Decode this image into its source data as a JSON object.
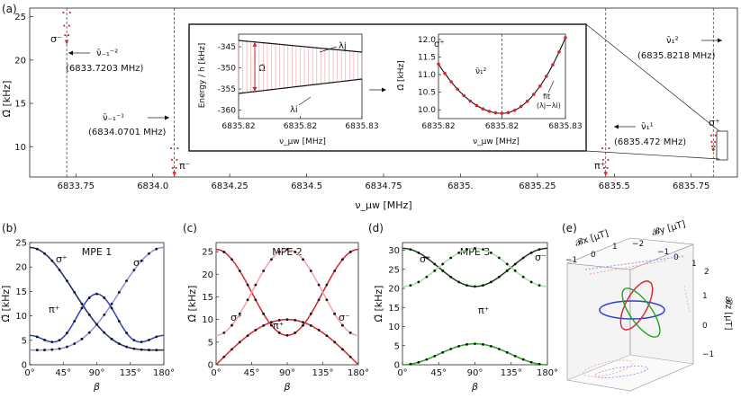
{
  "colors": {
    "red": "#d9232e",
    "navy": "#1b2a6b",
    "blue": "#2b3fd1",
    "lavender": "#8e8fe0",
    "pink": "#f3a1a5",
    "green": "#1fa51f",
    "lightgreen": "#9fe29f",
    "darkgreen": "#123d12"
  },
  "chart_data": [
    {
      "id": "a",
      "type": "scatter",
      "panel": "(a)",
      "xlabel": "ν_μw [MHz]",
      "ylabel": "Ω̃ [kHz]",
      "xlim": [
        6833.6,
        6835.9
      ],
      "ylim": [
        6.5,
        26
      ],
      "xticks": [
        "6833.75",
        "6834.0",
        "6834.25",
        "6834.5",
        "6834.75",
        "6835.",
        "6835.25",
        "6835.5",
        "6835.75"
      ],
      "yticks": [
        "10",
        "15",
        "20",
        "25"
      ],
      "clusters": [
        {
          "label": "σ⁻",
          "x0": 6833.7203,
          "ytop": 25.5,
          "ybottom": 22.0
        },
        {
          "label": "π⁻",
          "x0": 6834.0701,
          "ytop": 9.8,
          "ybottom": 6.8
        },
        {
          "label": "π⁺",
          "x0": 6835.472,
          "ytop": 9.8,
          "ybottom": 6.8
        },
        {
          "label": "σ⁺",
          "x0": 6835.8218,
          "ytop": 11.3,
          "ybottom": 9.6
        }
      ],
      "annotations": [
        {
          "sym": "ν̄₋₁⁻²",
          "freq": "(6833.7203 MHz)"
        },
        {
          "sym": "ν̄₋₁⁻¹",
          "freq": "(6834.0701 MHz)"
        },
        {
          "sym": "ν̄₁¹",
          "freq": "(6835.472 MHz)"
        },
        {
          "sym": "ν̄₁²",
          "freq": "(6835.8218 MHz)"
        }
      ],
      "inset_left": {
        "xlabel": "ν_μw [MHz]",
        "ylabel": "Energy / h  [kHz]",
        "xticks": [
          "6835.82",
          "6835.82",
          "6835.83"
        ],
        "yticks": [
          "-345",
          "-350",
          "-355",
          "-360"
        ],
        "upper_label": "λj",
        "lower_label": "λi",
        "gap_label": "Ω̃"
      },
      "inset_right": {
        "xlabel": "ν_μw [MHz]",
        "ylabel": "Ω̃ [kHz]",
        "xticks": [
          "6835.82",
          "6835.82",
          "6835.83"
        ],
        "yticks": [
          "10.0",
          "10.5",
          "11.0",
          "11.5",
          "12.0"
        ],
        "corner_label": "σ⁺",
        "center_label": "ν̄₁²",
        "fit_label1": "fit",
        "fit_label2": "(λj−λi)",
        "ymin": 9.9,
        "yedge": 11.85
      }
    },
    {
      "id": "b",
      "type": "line",
      "panel": "(b)",
      "title": "MPE 1",
      "xlabel": "β",
      "ylabel": "Ω̃ [kHz]",
      "xticks": [
        "0°",
        "45°",
        "90°",
        "135°",
        "180°"
      ],
      "yticks": [
        "0",
        "5",
        "10",
        "15",
        "20",
        "25"
      ],
      "ylim": [
        0,
        25
      ],
      "series": [
        {
          "name": "σ⁺",
          "color": "navy",
          "f": "6+18cos²β"
        },
        {
          "name": "σ⁻",
          "color": "lavender",
          "f": "24-18cos²β"
        },
        {
          "name": "π⁺",
          "color": "blue",
          "f": "3+11.7sin²(2β)-3cos²(2β)"
        }
      ]
    },
    {
      "id": "c",
      "type": "line",
      "panel": "(c)",
      "title": "MPE 2",
      "xlabel": "β",
      "ylabel": "Ω̃ [kHz]",
      "xticks": [
        "0°",
        "45°",
        "90°",
        "135°",
        "180°"
      ],
      "yticks": [
        "0",
        "5",
        "10",
        "15",
        "20",
        "25"
      ],
      "ylim": [
        0,
        27
      ],
      "series": [
        {
          "name": "σ⁺",
          "color": "red",
          "f": "6.5+19cos²β"
        },
        {
          "name": "σ⁻",
          "color": "pink",
          "f": "25.5-19cos²β"
        },
        {
          "name": "π⁺",
          "color": "red",
          "f": "10sinβ"
        }
      ]
    },
    {
      "id": "d",
      "type": "line",
      "panel": "(d)",
      "title": "MPE 3",
      "xlabel": "β",
      "ylabel": "Ω̃ [kHz]",
      "xticks": [
        "0°",
        "45°",
        "90°",
        "135°",
        "180°"
      ],
      "yticks": [
        "0",
        "5",
        "10",
        "15",
        "20",
        "25",
        "30"
      ],
      "ylim": [
        0,
        32
      ],
      "series": [
        {
          "name": "σ⁺",
          "color": "darkgreen",
          "f": "20.5+10cos²β"
        },
        {
          "name": "σ⁻",
          "color": "lightgreen",
          "f": "30.5-10cos²β"
        },
        {
          "name": "π⁺",
          "color": "green",
          "f": "5.5sin²β"
        }
      ]
    },
    {
      "id": "e",
      "type": "other",
      "panel": "(e)",
      "axis_x": "𝓑x [μT]",
      "axis_y": "𝓑y [μT]",
      "axis_z": "𝓑z [μT]",
      "xticks": [
        "−1",
        "0",
        "1"
      ],
      "yticks": [
        "−2",
        "−1",
        "0",
        "1",
        "2"
      ],
      "zticks": [
        "1",
        "0",
        "−1"
      ]
    }
  ]
}
